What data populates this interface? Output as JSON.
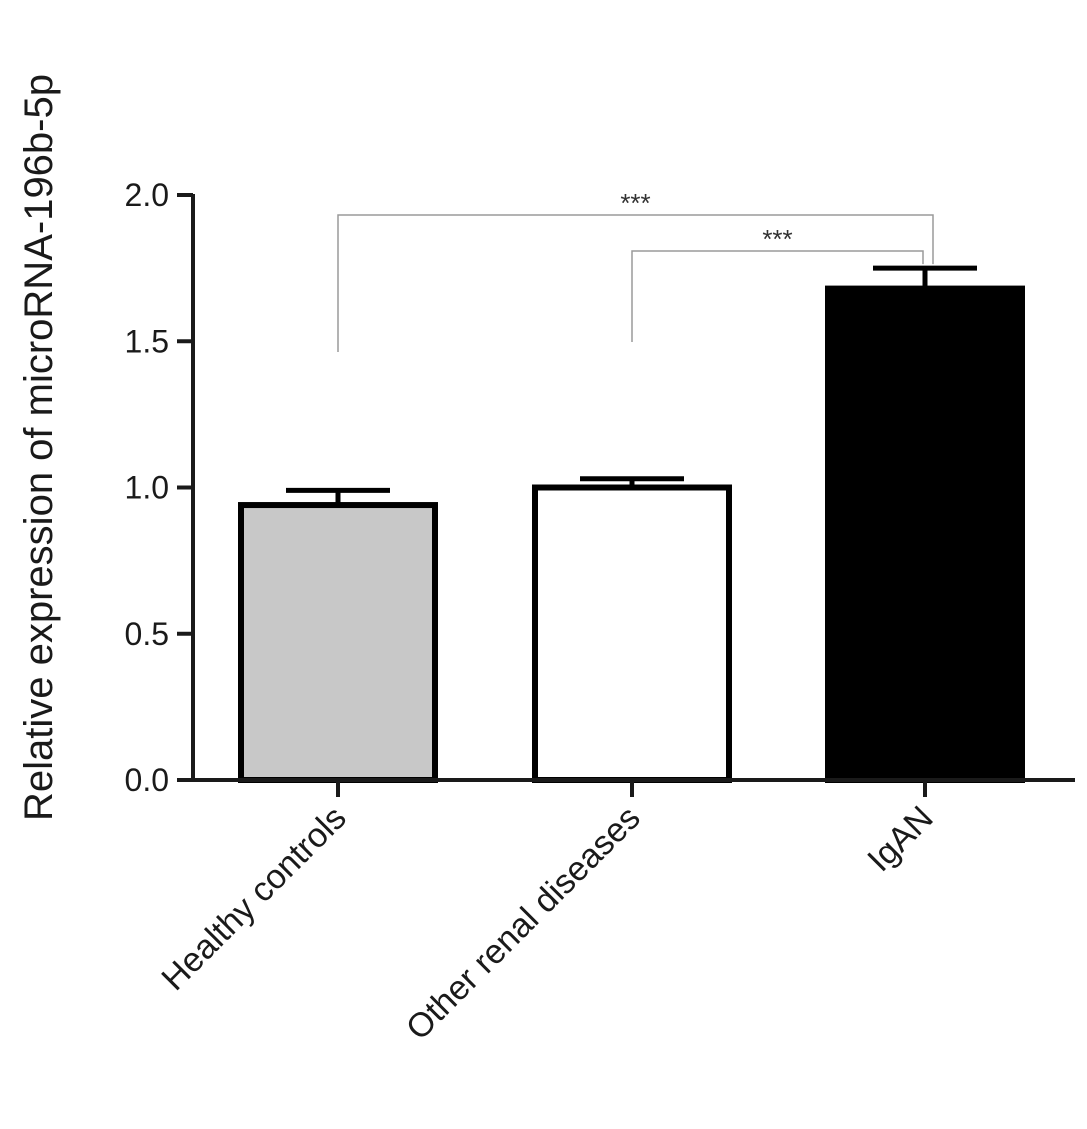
{
  "chart_data": {
    "type": "bar",
    "title": "",
    "xlabel": "",
    "ylabel": "Relative expression of microRNA-196b-5p",
    "ylim": [
      0,
      2.0
    ],
    "yticks": [
      0.0,
      0.5,
      1.0,
      1.5,
      2.0
    ],
    "ytick_labels": [
      "0.0",
      "0.5",
      "1.0",
      "1.5",
      "2.0"
    ],
    "categories": [
      "Healthy controls",
      "Other renal diseases",
      "IgAN"
    ],
    "values": [
      0.94,
      1.0,
      1.68
    ],
    "errors": [
      0.05,
      0.03,
      0.07
    ],
    "bar_colors": [
      "#c8c8c8",
      "#ffffff",
      "#000000"
    ],
    "grid": false,
    "legend": "none",
    "significance": [
      {
        "from": 0,
        "to": 2,
        "label": "***"
      },
      {
        "from": 1,
        "to": 2,
        "label": "***"
      }
    ]
  }
}
